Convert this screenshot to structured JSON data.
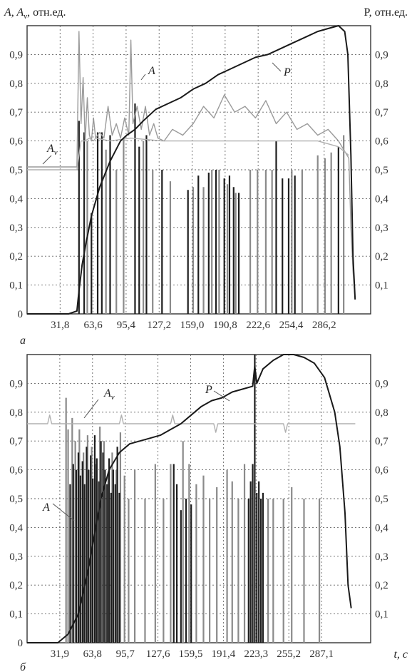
{
  "figure": {
    "y_left_label": "A, A",
    "y_left_label_sub": "v",
    "y_left_label_unit": ", отн.ед.",
    "y_right_label": "P, отн.ед.",
    "x_label": "t, c"
  },
  "chart_data": [
    {
      "panel": "а",
      "type": "line",
      "ylim": [
        0,
        1.0
      ],
      "xlim": [
        0,
        331
      ],
      "y_ticks": [
        "0",
        "0,1",
        "0,2",
        "0,3",
        "0,4",
        "0,5",
        "0,6",
        "0,7",
        "0,8",
        "0,9"
      ],
      "y_ticks_right": [
        "0,1",
        "0,2",
        "0,3",
        "0,4",
        "0,5",
        "0,6",
        "0,7",
        "0,8",
        "0,9"
      ],
      "x_ticks": [
        "31,8",
        "63,6",
        "95,4",
        "127,2",
        "159,0",
        "190,8",
        "222,6",
        "254,4",
        "286,2"
      ],
      "x_tick_values": [
        31.8,
        63.6,
        95.4,
        127.2,
        159.0,
        190.8,
        222.6,
        254.4,
        286.2
      ],
      "annotations": [
        "A",
        "P",
        "A"
      ],
      "annotation_sub": "v",
      "grid": true,
      "series": [
        {
          "name": "P",
          "color": "#1a1a1a",
          "x": [
            0,
            40,
            48,
            50,
            53,
            57,
            62,
            70,
            80,
            90,
            96,
            104,
            112,
            124,
            136,
            148,
            160,
            172,
            184,
            196,
            208,
            220,
            232,
            244,
            256,
            268,
            280,
            290,
            300,
            306,
            309,
            312,
            314,
            316
          ],
          "y": [
            0,
            0,
            0.01,
            0.08,
            0.17,
            0.25,
            0.34,
            0.44,
            0.53,
            0.6,
            0.62,
            0.64,
            0.67,
            0.71,
            0.73,
            0.75,
            0.78,
            0.8,
            0.83,
            0.85,
            0.87,
            0.89,
            0.9,
            0.92,
            0.94,
            0.96,
            0.98,
            0.99,
            1.0,
            0.98,
            0.9,
            0.55,
            0.2,
            0.05
          ]
        },
        {
          "name": "A",
          "color": "#9a9a9a",
          "x": [
            0,
            48,
            50,
            52,
            54,
            56,
            58,
            60,
            62,
            64,
            66,
            70,
            74,
            78,
            82,
            86,
            90,
            94,
            98,
            100,
            102,
            106,
            110,
            114,
            118,
            122,
            126,
            132,
            140,
            150,
            160,
            170,
            180,
            190,
            200,
            210,
            220,
            230,
            240,
            250,
            260,
            270,
            280,
            290,
            300,
            305,
            310,
            312,
            314,
            316
          ],
          "y": [
            0.51,
            0.51,
            0.98,
            0.66,
            0.82,
            0.6,
            0.75,
            0.62,
            0.6,
            0.68,
            0.61,
            0.63,
            0.61,
            0.72,
            0.62,
            0.66,
            0.61,
            0.68,
            0.62,
            0.95,
            0.66,
            0.72,
            0.64,
            0.72,
            0.62,
            0.66,
            0.61,
            0.6,
            0.64,
            0.62,
            0.66,
            0.72,
            0.68,
            0.76,
            0.7,
            0.72,
            0.68,
            0.74,
            0.66,
            0.7,
            0.64,
            0.66,
            0.62,
            0.64,
            0.6,
            0.57,
            0.54,
            0.3,
            0.15,
            0.05
          ]
        },
        {
          "name": "Av",
          "color": "#b0b0b0",
          "x": [
            0,
            48,
            52,
            56,
            60,
            64,
            66,
            80,
            100,
            130,
            150,
            160,
            200,
            240,
            280,
            300,
            310
          ],
          "y": [
            0.5,
            0.5,
            0.6,
            0.6,
            0.61,
            0.6,
            0.61,
            0.6,
            0.61,
            0.6,
            0.6,
            0.6,
            0.6,
            0.6,
            0.6,
            0.58,
            0.55
          ]
        }
      ],
      "pulses": {
        "dark": [
          [
            50,
            0.67
          ],
          [
            55,
            0.63
          ],
          [
            62,
            0.35
          ],
          [
            68,
            0.63
          ],
          [
            72,
            0.63
          ],
          [
            80,
            0.62
          ],
          [
            104,
            0.73
          ],
          [
            108,
            0.58
          ],
          [
            115,
            0.62
          ],
          [
            130,
            0.5
          ],
          [
            155,
            0.43
          ],
          [
            165,
            0.48
          ],
          [
            175,
            0.49
          ],
          [
            182,
            0.5
          ],
          [
            190,
            0.47
          ],
          [
            195,
            0.48
          ],
          [
            199,
            0.44
          ],
          [
            204,
            0.42
          ],
          [
            240,
            0.6
          ],
          [
            246,
            0.47
          ],
          [
            252,
            0.47
          ],
          [
            258,
            0.48
          ],
          [
            300,
            0.58
          ]
        ],
        "light": [
          [
            58,
            0.6
          ],
          [
            76,
            0.57
          ],
          [
            86,
            0.5
          ],
          [
            93,
            0.61
          ],
          [
            112,
            0.6
          ],
          [
            121,
            0.5
          ],
          [
            138,
            0.46
          ],
          [
            160,
            0.44
          ],
          [
            170,
            0.44
          ],
          [
            178,
            0.5
          ],
          [
            185,
            0.5
          ],
          [
            193,
            0.45
          ],
          [
            201,
            0.42
          ],
          [
            215,
            0.5
          ],
          [
            222,
            0.5
          ],
          [
            230,
            0.5
          ],
          [
            236,
            0.5
          ],
          [
            255,
            0.5
          ],
          [
            265,
            0.5
          ],
          [
            280,
            0.55
          ],
          [
            287,
            0.54
          ],
          [
            293,
            0.56
          ],
          [
            305,
            0.62
          ]
        ]
      }
    },
    {
      "panel": "б",
      "type": "line",
      "ylim": [
        0,
        1.0
      ],
      "xlim": [
        0,
        335
      ],
      "y_ticks": [
        "0",
        "0,1",
        "0,2",
        "0,3",
        "0,4",
        "0,5",
        "0,6",
        "0,7",
        "0,8",
        "0,9"
      ],
      "y_ticks_right": [
        "0,1",
        "0,2",
        "0,3",
        "0,4",
        "0,5",
        "0,6",
        "0,7",
        "0,8",
        "0,9"
      ],
      "x_ticks": [
        "31,9",
        "63,8",
        "95,7",
        "127,6",
        "159,5",
        "191,4",
        "223,3",
        "255,2",
        "287,1"
      ],
      "x_tick_values": [
        31.9,
        63.8,
        95.7,
        127.6,
        159.5,
        191.4,
        223.3,
        255.2,
        287.1
      ],
      "annotations": [
        "A",
        "P",
        "A"
      ],
      "annotation_sub": "v",
      "grid": true,
      "series": [
        {
          "name": "P",
          "color": "#1a1a1a",
          "x": [
            0,
            30,
            40,
            50,
            60,
            66,
            72,
            80,
            90,
            100,
            110,
            120,
            130,
            140,
            150,
            160,
            170,
            180,
            190,
            200,
            210,
            220,
            222,
            224,
            230,
            240,
            250,
            260,
            270,
            280,
            290,
            300,
            305,
            310,
            313,
            316
          ],
          "y": [
            0,
            0,
            0.03,
            0.1,
            0.26,
            0.38,
            0.5,
            0.6,
            0.66,
            0.69,
            0.7,
            0.71,
            0.72,
            0.74,
            0.76,
            0.79,
            0.82,
            0.84,
            0.85,
            0.87,
            0.88,
            0.89,
            0.96,
            0.9,
            0.95,
            0.98,
            1.0,
            1.0,
            0.99,
            0.97,
            0.92,
            0.8,
            0.68,
            0.45,
            0.2,
            0.12
          ]
        },
        {
          "name": "Av",
          "color": "#b0b0b0",
          "x": [
            0,
            20,
            22,
            24,
            90,
            92,
            94,
            140,
            142,
            144,
            182,
            184,
            186,
            250,
            252,
            254,
            270,
            290,
            320
          ],
          "y": [
            0.76,
            0.76,
            0.79,
            0.76,
            0.76,
            0.79,
            0.76,
            0.76,
            0.79,
            0.76,
            0.76,
            0.73,
            0.76,
            0.76,
            0.73,
            0.76,
            0.76,
            0.76,
            0.76
          ]
        }
      ],
      "pulses": {
        "dark": [
          [
            42,
            0.55
          ],
          [
            45,
            0.62
          ],
          [
            48,
            0.6
          ],
          [
            50,
            0.66
          ],
          [
            52,
            0.58
          ],
          [
            54,
            0.63
          ],
          [
            56,
            0.55
          ],
          [
            58,
            0.68
          ],
          [
            60,
            0.6
          ],
          [
            62,
            0.65
          ],
          [
            64,
            0.57
          ],
          [
            66,
            0.72
          ],
          [
            68,
            0.64
          ],
          [
            70,
            0.56
          ],
          [
            72,
            0.7
          ],
          [
            74,
            0.66
          ],
          [
            76,
            0.6
          ],
          [
            78,
            0.55
          ],
          [
            80,
            0.64
          ],
          [
            82,
            0.52
          ],
          [
            84,
            0.6
          ],
          [
            86,
            0.55
          ],
          [
            88,
            0.68
          ],
          [
            90,
            0.52
          ],
          [
            143,
            0.62
          ],
          [
            146,
            0.55
          ],
          [
            150,
            0.46
          ],
          [
            155,
            0.5
          ],
          [
            160,
            0.48
          ],
          [
            216,
            0.5
          ],
          [
            218,
            0.56
          ],
          [
            220,
            0.62
          ],
          [
            222,
            1.0
          ],
          [
            224,
            0.52
          ],
          [
            226,
            0.56
          ],
          [
            228,
            0.5
          ],
          [
            230,
            0.52
          ]
        ],
        "light": [
          [
            38,
            0.85
          ],
          [
            40,
            0.74
          ],
          [
            44,
            0.78
          ],
          [
            47,
            0.7
          ],
          [
            51,
            0.74
          ],
          [
            55,
            0.66
          ],
          [
            59,
            0.72
          ],
          [
            63,
            0.68
          ],
          [
            67,
            0.62
          ],
          [
            71,
            0.75
          ],
          [
            75,
            0.7
          ],
          [
            79,
            0.58
          ],
          [
            83,
            0.66
          ],
          [
            87,
            0.6
          ],
          [
            91,
            0.73
          ],
          [
            95,
            0.58
          ],
          [
            99,
            0.5
          ],
          [
            105,
            0.6
          ],
          [
            115,
            0.5
          ],
          [
            125,
            0.62
          ],
          [
            133,
            0.5
          ],
          [
            140,
            0.62
          ],
          [
            152,
            0.7
          ],
          [
            158,
            0.62
          ],
          [
            165,
            0.55
          ],
          [
            172,
            0.58
          ],
          [
            178,
            0.5
          ],
          [
            185,
            0.54
          ],
          [
            195,
            0.6
          ],
          [
            200,
            0.56
          ],
          [
            206,
            0.5
          ],
          [
            212,
            0.62
          ],
          [
            235,
            0.5
          ],
          [
            240,
            0.5
          ],
          [
            250,
            0.5
          ],
          [
            258,
            0.54
          ],
          [
            270,
            0.5
          ],
          [
            285,
            0.5
          ]
        ]
      }
    }
  ]
}
